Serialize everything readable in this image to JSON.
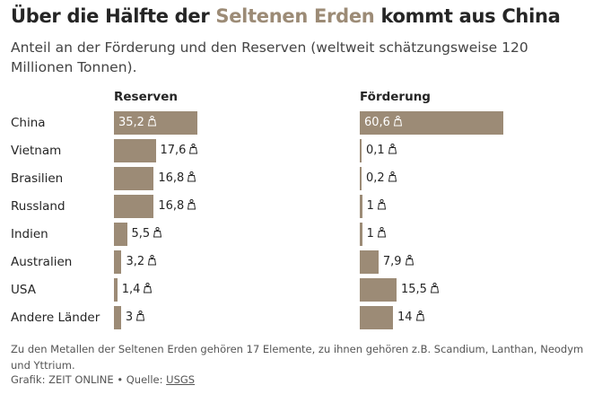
{
  "header": {
    "title_pre": "Über die Hälfte der ",
    "title_highlight": "Seltenen Erden",
    "title_post": " kommt aus China",
    "subtitle": "Anteil an der Förderung und den Reserven (weltweit schätzungsweise 120 Millionen Tonnen)."
  },
  "colors": {
    "accent": "#9c8b76",
    "bar": "#9c8b76"
  },
  "unit_icon": "weight-icon",
  "chart_data": {
    "type": "bar",
    "orientation": "horizontal",
    "categories": [
      "China",
      "Vietnam",
      "Brasilien",
      "Russland",
      "Indien",
      "Australien",
      "USA",
      "Andere Länder"
    ],
    "series": [
      {
        "name": "Reserven",
        "values": [
          35.2,
          17.6,
          16.8,
          16.8,
          5.5,
          3.2,
          1.4,
          3
        ],
        "labels": [
          "35,2",
          "17,6",
          "16,8",
          "16,8",
          "5,5",
          "3,2",
          "1,4",
          "3"
        ]
      },
      {
        "name": "Förderung",
        "values": [
          60.6,
          0.1,
          0.2,
          1,
          1,
          7.9,
          15.5,
          14
        ],
        "labels": [
          "60,6",
          "0,1",
          "0,2",
          "1",
          "1",
          "7,9",
          "15,5",
          "14"
        ]
      }
    ],
    "title": "",
    "legend": "none",
    "grid": false
  },
  "footer": {
    "note": "Zu den Metallen der Seltenen Erden gehören 17 Elemente, zu ihnen gehören z.B. Scandium, Lanthan, Neodym und Yttrium.",
    "source_prefix": "Grafik: ZEIT ONLINE • Quelle: ",
    "source_link": "USGS"
  }
}
